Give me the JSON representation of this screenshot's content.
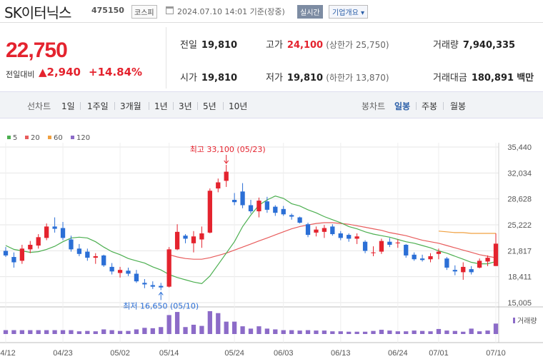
{
  "header": {
    "name": "SK이터닉스",
    "code": "475150",
    "market": "코스피",
    "datetime": "2024.07.10 14:01 기준(장중)",
    "realtime_label": "실시간",
    "company_label": "기업개요",
    "company_arrow": "▾"
  },
  "price": {
    "current": "22,750",
    "diff_label": "전일대비",
    "diff_value": "▲2,940",
    "diff_pct": "+14.84%",
    "stats": {
      "prev_label": "전일",
      "prev_value": "19,810",
      "high_label": "고가",
      "high_value": "24,100",
      "upper_limit": "(상한가 25,750)",
      "volume_label": "거래량",
      "volume_value": "7,940,335",
      "open_label": "시가",
      "open_value": "19,810",
      "low_label": "저가",
      "low_value": "19,810",
      "lower_limit": "(하한가 13,870)",
      "amount_label": "거래대금",
      "amount_value": "180,891",
      "amount_unit": "백만"
    }
  },
  "toolbar": {
    "line_chart_label": "선차트",
    "periods": [
      "1일",
      "1주일",
      "3개월",
      "1년",
      "3년",
      "5년",
      "10년"
    ],
    "candle_label": "봉차트",
    "candle_periods": [
      "일봉",
      "주봉",
      "월봉"
    ],
    "active_candle": "일봉"
  },
  "colors": {
    "up": "#e4232e",
    "down": "#2b6fd6",
    "ma5": "#4caf50",
    "ma20": "#e85c5c",
    "ma60": "#f0a040",
    "ma120": "#8c6bc8",
    "volume": "#8c6bc8"
  },
  "chart_data": {
    "type": "candlestick",
    "legend": [
      {
        "name": "5",
        "color": "#4caf50"
      },
      {
        "name": "20",
        "color": "#e85c5c"
      },
      {
        "name": "60",
        "color": "#f0a040"
      },
      {
        "name": "120",
        "color": "#8c6bc8"
      }
    ],
    "y_ticks": [
      "35,440",
      "32,034",
      "28,628",
      "25,222",
      "21,817",
      "18,411",
      "15,005"
    ],
    "y_tick_values": [
      35440,
      32034,
      28628,
      25222,
      21817,
      18411,
      15005
    ],
    "ylim": [
      15005,
      35440
    ],
    "x_ticks": [
      {
        "label": "04/12",
        "index": 0
      },
      {
        "label": "04/23",
        "index": 7
      },
      {
        "label": "05/02",
        "index": 14
      },
      {
        "label": "05/14",
        "index": 20
      },
      {
        "label": "05/24",
        "index": 28
      },
      {
        "label": "06/03",
        "index": 34
      },
      {
        "label": "06/13",
        "index": 41
      },
      {
        "label": "06/24",
        "index": 48
      },
      {
        "label": "07/01",
        "index": 53
      },
      {
        "label": "07/10",
        "index": 60
      }
    ],
    "annotations": {
      "high": {
        "text": "최고 33,100 (05/23)",
        "index": 27,
        "value": 33100
      },
      "low": {
        "text": "최저 16,650 (05/10)",
        "index": 19,
        "value": 16650
      }
    },
    "volume_label": "거래량",
    "candles": [
      {
        "o": 21800,
        "h": 22300,
        "l": 21000,
        "c": 21200
      },
      {
        "o": 21000,
        "h": 21600,
        "l": 19600,
        "c": 20300
      },
      {
        "o": 20500,
        "h": 22600,
        "l": 20100,
        "c": 22100
      },
      {
        "o": 22000,
        "h": 23100,
        "l": 21500,
        "c": 22600
      },
      {
        "o": 22500,
        "h": 24000,
        "l": 22100,
        "c": 23600
      },
      {
        "o": 23500,
        "h": 25400,
        "l": 23200,
        "c": 25000
      },
      {
        "o": 25000,
        "h": 26200,
        "l": 24200,
        "c": 24700
      },
      {
        "o": 24800,
        "h": 25600,
        "l": 23200,
        "c": 23500
      },
      {
        "o": 23300,
        "h": 23800,
        "l": 21700,
        "c": 22000
      },
      {
        "o": 22100,
        "h": 22700,
        "l": 21100,
        "c": 21400
      },
      {
        "o": 21700,
        "h": 22100,
        "l": 20500,
        "c": 20900
      },
      {
        "o": 20900,
        "h": 21500,
        "l": 20100,
        "c": 21100
      },
      {
        "o": 21200,
        "h": 21300,
        "l": 19700,
        "c": 19900
      },
      {
        "o": 19700,
        "h": 20200,
        "l": 18700,
        "c": 19100
      },
      {
        "o": 18900,
        "h": 19700,
        "l": 18300,
        "c": 19300
      },
      {
        "o": 19200,
        "h": 19600,
        "l": 18500,
        "c": 18800
      },
      {
        "o": 18800,
        "h": 19300,
        "l": 17600,
        "c": 17800
      },
      {
        "o": 17600,
        "h": 18100,
        "l": 16900,
        "c": 17400
      },
      {
        "o": 17300,
        "h": 17800,
        "l": 16800,
        "c": 17100
      },
      {
        "o": 17200,
        "h": 17600,
        "l": 16650,
        "c": 17000
      },
      {
        "o": 17100,
        "h": 22300,
        "l": 17000,
        "c": 22000
      },
      {
        "o": 22000,
        "h": 25300,
        "l": 21900,
        "c": 24300
      },
      {
        "o": 23800,
        "h": 24000,
        "l": 22800,
        "c": 23400
      },
      {
        "o": 22800,
        "h": 24400,
        "l": 21600,
        "c": 23700
      },
      {
        "o": 23300,
        "h": 25000,
        "l": 22200,
        "c": 24100
      },
      {
        "o": 24200,
        "h": 30000,
        "l": 24100,
        "c": 29700
      },
      {
        "o": 30000,
        "h": 31300,
        "l": 29500,
        "c": 30800
      },
      {
        "o": 31000,
        "h": 33100,
        "l": 30200,
        "c": 32200
      },
      {
        "o": 28500,
        "h": 29400,
        "l": 27800,
        "c": 28200
      },
      {
        "o": 29600,
        "h": 30700,
        "l": 27400,
        "c": 27800
      },
      {
        "o": 27800,
        "h": 28500,
        "l": 26700,
        "c": 27000
      },
      {
        "o": 27000,
        "h": 28800,
        "l": 26200,
        "c": 28400
      },
      {
        "o": 28300,
        "h": 28900,
        "l": 26800,
        "c": 27200
      },
      {
        "o": 27600,
        "h": 27800,
        "l": 26400,
        "c": 26800
      },
      {
        "o": 27300,
        "h": 27700,
        "l": 26400,
        "c": 26600
      },
      {
        "o": 26500,
        "h": 26700,
        "l": 25900,
        "c": 26300
      },
      {
        "o": 26200,
        "h": 26300,
        "l": 25400,
        "c": 25500
      },
      {
        "o": 25300,
        "h": 25500,
        "l": 23600,
        "c": 23900
      },
      {
        "o": 24200,
        "h": 25000,
        "l": 23700,
        "c": 24600
      },
      {
        "o": 24300,
        "h": 25200,
        "l": 23500,
        "c": 24800
      },
      {
        "o": 25000,
        "h": 25300,
        "l": 23800,
        "c": 24000
      },
      {
        "o": 24100,
        "h": 24400,
        "l": 23200,
        "c": 23500
      },
      {
        "o": 23900,
        "h": 24100,
        "l": 23000,
        "c": 23400
      },
      {
        "o": 23400,
        "h": 24100,
        "l": 22700,
        "c": 23700
      },
      {
        "o": 23000,
        "h": 23200,
        "l": 21500,
        "c": 21800
      },
      {
        "o": 21500,
        "h": 22400,
        "l": 21100,
        "c": 21600
      },
      {
        "o": 21700,
        "h": 23400,
        "l": 21400,
        "c": 23100
      },
      {
        "o": 23000,
        "h": 23500,
        "l": 22300,
        "c": 22600
      },
      {
        "o": 22800,
        "h": 23300,
        "l": 22200,
        "c": 22900
      },
      {
        "o": 22600,
        "h": 22700,
        "l": 20900,
        "c": 21200
      },
      {
        "o": 21300,
        "h": 21600,
        "l": 20500,
        "c": 20700
      },
      {
        "o": 20800,
        "h": 21300,
        "l": 20400,
        "c": 20600
      },
      {
        "o": 20700,
        "h": 21500,
        "l": 20300,
        "c": 21100
      },
      {
        "o": 21400,
        "h": 22100,
        "l": 20700,
        "c": 21700
      },
      {
        "o": 20800,
        "h": 21000,
        "l": 19300,
        "c": 19600
      },
      {
        "o": 19300,
        "h": 19900,
        "l": 18600,
        "c": 19100
      },
      {
        "o": 19000,
        "h": 20300,
        "l": 18000,
        "c": 19700
      },
      {
        "o": 19400,
        "h": 19800,
        "l": 18700,
        "c": 19000
      },
      {
        "o": 19600,
        "h": 20800,
        "l": 19500,
        "c": 20500
      },
      {
        "o": 20400,
        "h": 21200,
        "l": 19800,
        "c": 20900
      },
      {
        "o": 19810,
        "h": 24100,
        "l": 19810,
        "c": 22750
      }
    ],
    "volume": [
      1,
      1,
      1,
      1,
      1,
      1,
      1,
      1,
      1,
      0.7,
      0.8,
      0.7,
      1.2,
      1,
      0.8,
      0.8,
      1.2,
      1.6,
      1.5,
      1.8,
      4.9,
      5.7,
      1.8,
      2.4,
      2.1,
      5.9,
      5.4,
      3.2,
      3.2,
      2.0,
      1.4,
      2.0,
      1.4,
      1.2,
      1.0,
      1.0,
      0.9,
      1.0,
      0.9,
      0.9,
      0.7,
      0.7,
      0.6,
      0.6,
      0.6,
      0.8,
      1.1,
      0.9,
      0.7,
      0.7,
      0.9,
      0.8,
      0.7,
      1.3,
      0.9,
      0.8,
      0.6,
      1.4,
      0.7,
      0.9,
      2.7
    ],
    "ma5": [
      22500,
      22000,
      21800,
      21600,
      21700,
      22000,
      22400,
      23000,
      23500,
      23600,
      23500,
      23000,
      22300,
      21700,
      21300,
      20800,
      20500,
      20200,
      19700,
      19300,
      18700,
      18300,
      18000,
      17700,
      17500,
      18500,
      20000,
      21500,
      23000,
      25000,
      26500,
      27800,
      28500,
      29000,
      28700,
      28000,
      27700,
      27200,
      26800,
      26300,
      25900,
      25500,
      25000,
      24700,
      24300,
      24000,
      23800,
      23600,
      23300,
      23000,
      22800,
      22500,
      22200,
      21800,
      21500,
      21100,
      20700,
      20300,
      20100,
      20100,
      20400
    ],
    "ma20": [
      null,
      null,
      null,
      null,
      null,
      null,
      null,
      null,
      null,
      null,
      null,
      null,
      null,
      null,
      null,
      null,
      null,
      null,
      null,
      null,
      21300,
      21000,
      20800,
      20700,
      20700,
      20900,
      21200,
      21500,
      21900,
      22300,
      22700,
      23100,
      23500,
      23900,
      24300,
      24700,
      25000,
      25200,
      25400,
      25500,
      25500,
      25400,
      25300,
      25100,
      24900,
      24700,
      24500,
      24200,
      24000,
      23800,
      23500,
      23200,
      23000,
      22800,
      22500,
      22200,
      21900,
      21600,
      21300,
      21100,
      20900
    ],
    "ma60": [
      null,
      null,
      null,
      null,
      null,
      null,
      null,
      null,
      null,
      null,
      null,
      null,
      null,
      null,
      null,
      null,
      null,
      null,
      null,
      null,
      null,
      null,
      null,
      null,
      null,
      null,
      null,
      null,
      null,
      null,
      null,
      null,
      null,
      null,
      null,
      null,
      null,
      null,
      null,
      null,
      null,
      null,
      null,
      null,
      null,
      null,
      null,
      null,
      null,
      null,
      null,
      null,
      null,
      24400,
      24300,
      24200,
      24200,
      24100,
      24100,
      24100,
      24100
    ]
  }
}
